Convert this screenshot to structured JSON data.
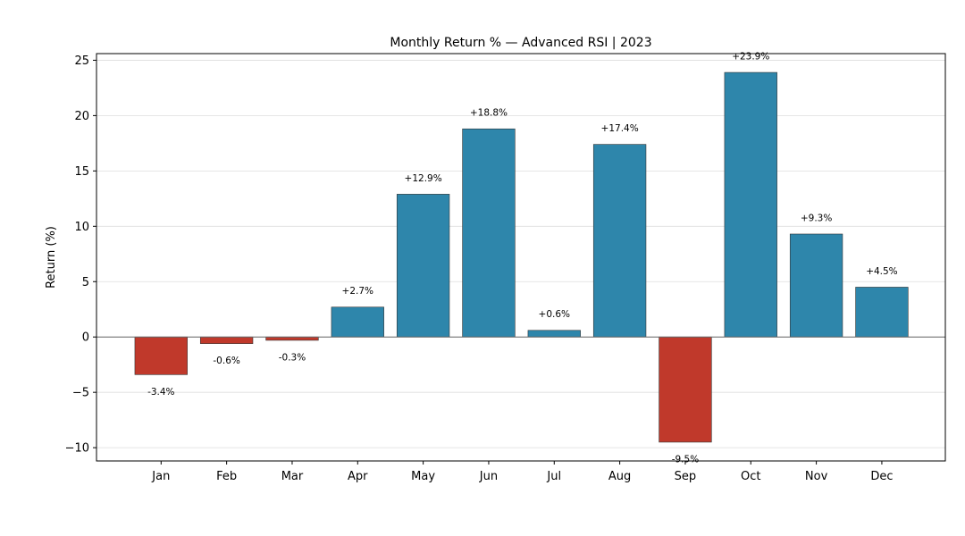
{
  "chart_data": {
    "type": "bar",
    "title": "Monthly Return % — Advanced RSI | 2023",
    "xlabel": "",
    "ylabel": "Return (%)",
    "categories": [
      "Jan",
      "Feb",
      "Mar",
      "Apr",
      "May",
      "Jun",
      "Jul",
      "Aug",
      "Sep",
      "Oct",
      "Nov",
      "Dec"
    ],
    "values": [
      -3.4,
      -0.6,
      -0.3,
      2.7,
      12.9,
      18.8,
      0.6,
      17.4,
      -9.5,
      23.9,
      9.3,
      4.5
    ],
    "data_labels": [
      "-3.4%",
      "-0.6%",
      "-0.3%",
      "+2.7%",
      "+12.9%",
      "+18.8%",
      "+0.6%",
      "+17.4%",
      "-9.5%",
      "+23.9%",
      "+9.3%",
      "+4.5%"
    ],
    "ylim": [
      -11.2,
      25.6
    ],
    "yticks": [
      -10,
      -5,
      0,
      5,
      10,
      15,
      20,
      25
    ],
    "ytick_labels": [
      "−10",
      "−5",
      "0",
      "5",
      "10",
      "15",
      "20",
      "25"
    ],
    "grid": "horizontal",
    "legend": "none",
    "colors": {
      "positive": "#2e86ab",
      "negative": "#c0392b",
      "bar_edge": "#333333",
      "grid": "#dddddd",
      "zero_line": "#666666",
      "axes": "#000000"
    }
  }
}
